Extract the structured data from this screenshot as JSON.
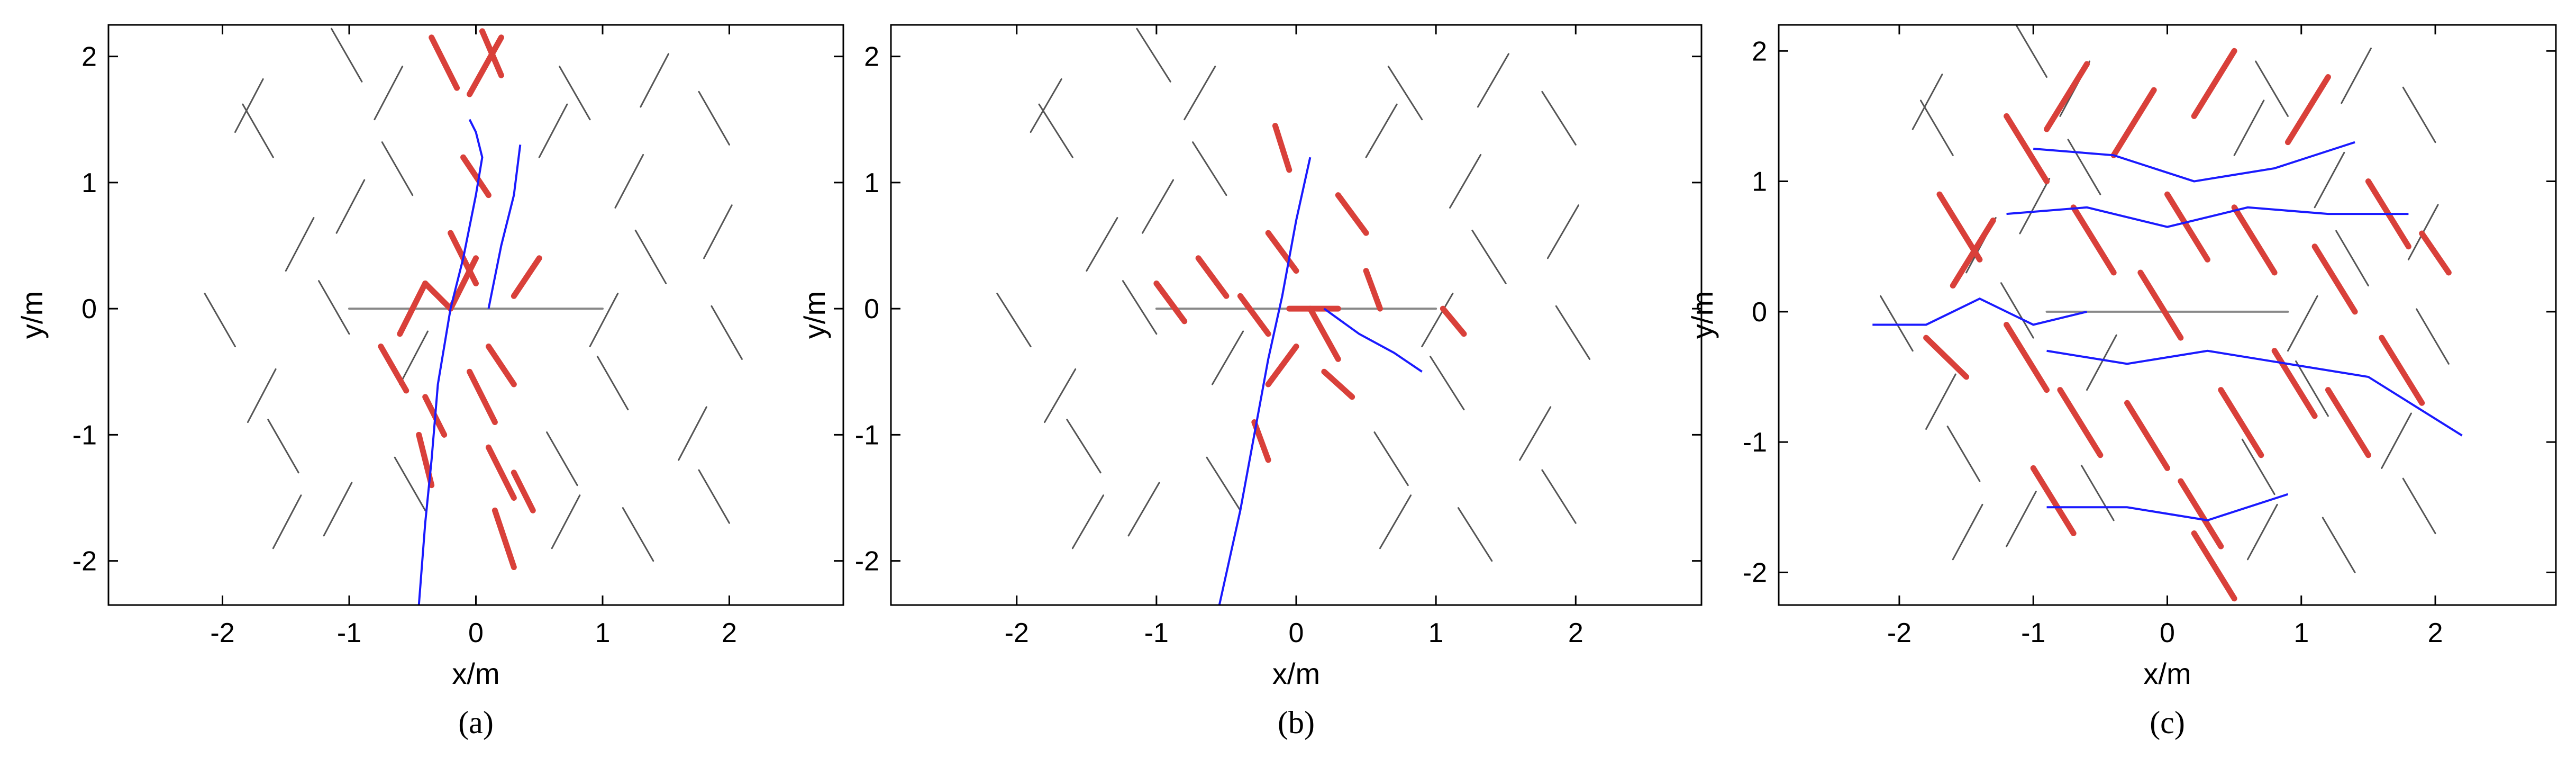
{
  "chart_data": [
    {
      "type": "segments",
      "xlabel": "x/m",
      "ylabel": "y/m",
      "caption": "(a)",
      "xlim": [
        -2.9,
        2.9
      ],
      "ylim": [
        -2.35,
        2.25
      ],
      "xticks": [
        -2,
        -1,
        0,
        1,
        2
      ],
      "yticks": [
        -2,
        -1,
        0,
        1,
        2
      ],
      "fractures": {
        "color": "#555555",
        "segments": [
          [
            -1.9,
            1.4,
            -1.68,
            1.82
          ],
          [
            -1.5,
            0.3,
            -1.28,
            0.72
          ],
          [
            -1.8,
            -0.9,
            -1.58,
            -0.48
          ],
          [
            -1.2,
            -1.8,
            -0.98,
            -1.38
          ],
          [
            -0.8,
            1.5,
            -0.58,
            1.92
          ],
          [
            -0.6,
            -0.6,
            -0.38,
            -0.18
          ],
          [
            0.5,
            1.2,
            0.72,
            1.62
          ],
          [
            0.9,
            -0.3,
            1.12,
            0.12
          ],
          [
            1.3,
            1.6,
            1.52,
            2.02
          ],
          [
            1.6,
            -1.2,
            1.82,
            -0.78
          ],
          [
            1.8,
            0.4,
            2.02,
            0.82
          ],
          [
            0.6,
            -1.9,
            0.82,
            -1.48
          ],
          [
            -1.1,
            0.6,
            -0.88,
            1.02
          ],
          [
            1.1,
            0.8,
            1.32,
            1.22
          ],
          [
            -1.6,
            -1.9,
            -1.38,
            -1.48
          ],
          [
            -1.6,
            1.2,
            -1.84,
            1.62
          ],
          [
            -1.0,
            -0.2,
            -1.24,
            0.22
          ],
          [
            -1.4,
            -1.3,
            -1.64,
            -0.88
          ],
          [
            -0.5,
            0.9,
            -0.74,
            1.32
          ],
          [
            -0.4,
            -1.6,
            -0.64,
            -1.18
          ],
          [
            0.9,
            1.5,
            0.66,
            1.92
          ],
          [
            1.2,
            -0.8,
            0.96,
            -0.38
          ],
          [
            1.5,
            0.2,
            1.26,
            0.62
          ],
          [
            2.0,
            1.3,
            1.76,
            1.72
          ],
          [
            2.0,
            -1.7,
            1.76,
            -1.28
          ],
          [
            0.8,
            -1.4,
            0.56,
            -0.98
          ],
          [
            -1.9,
            -0.3,
            -2.14,
            0.12
          ],
          [
            1.4,
            -2.0,
            1.16,
            -1.58
          ],
          [
            -0.9,
            1.8,
            -1.14,
            2.22
          ],
          [
            2.1,
            -0.4,
            1.86,
            0.02
          ]
        ]
      },
      "wellbore": {
        "color": "#888888",
        "segment": [
          -1,
          0,
          1,
          0
        ]
      },
      "activated": {
        "color": "#d9403a",
        "segments": [
          [
            -0.35,
            2.15,
            -0.15,
            1.75
          ],
          [
            0.05,
            2.2,
            0.2,
            1.85
          ],
          [
            0.2,
            2.15,
            -0.05,
            1.7
          ],
          [
            -0.1,
            1.2,
            0.1,
            0.9
          ],
          [
            -0.2,
            0.6,
            0.0,
            0.2
          ],
          [
            0.0,
            0.4,
            -0.2,
            0.0
          ],
          [
            -0.6,
            -0.2,
            -0.4,
            0.2
          ],
          [
            -0.4,
            0.2,
            -0.2,
            0.0
          ],
          [
            0.3,
            0.1,
            0.5,
            0.4
          ],
          [
            0.1,
            -0.3,
            0.3,
            -0.6
          ],
          [
            -0.05,
            -0.5,
            0.15,
            -0.9
          ],
          [
            -0.4,
            -0.7,
            -0.25,
            -1.0
          ],
          [
            -0.45,
            -1.0,
            -0.35,
            -1.4
          ],
          [
            0.1,
            -1.1,
            0.3,
            -1.5
          ],
          [
            0.3,
            -1.3,
            0.45,
            -1.6
          ],
          [
            0.15,
            -1.6,
            0.3,
            -2.05
          ],
          [
            -0.75,
            -0.3,
            -0.55,
            -0.65
          ]
        ]
      },
      "flow_paths": {
        "color": "#1a1aff",
        "paths": [
          {
            "x": [
              -0.45,
              -0.4,
              -0.35,
              -0.3,
              -0.2,
              -0.1,
              0.0,
              0.05,
              0.0,
              -0.05
            ],
            "y": [
              -2.35,
              -1.7,
              -1.2,
              -0.6,
              0.0,
              0.4,
              0.9,
              1.2,
              1.4,
              1.5
            ]
          },
          {
            "x": [
              0.1,
              0.2,
              0.3,
              0.35
            ],
            "y": [
              0.0,
              0.5,
              0.9,
              1.3
            ]
          }
        ]
      }
    },
    {
      "type": "segments",
      "xlabel": "x/m",
      "ylabel": "y/m",
      "caption": "(b)",
      "xlim": [
        -2.9,
        2.9
      ],
      "ylim": [
        -2.35,
        2.25
      ],
      "xticks": [
        -2,
        -1,
        0,
        1,
        2
      ],
      "yticks": [
        -2,
        -1,
        0,
        1,
        2
      ],
      "fractures": {
        "color": "#555555",
        "segments": [
          [
            -1.9,
            1.4,
            -1.68,
            1.82
          ],
          [
            -1.5,
            0.3,
            -1.28,
            0.72
          ],
          [
            -1.8,
            -0.9,
            -1.58,
            -0.48
          ],
          [
            -1.2,
            -1.8,
            -0.98,
            -1.38
          ],
          [
            -0.8,
            1.5,
            -0.58,
            1.92
          ],
          [
            -0.6,
            -0.6,
            -0.38,
            -0.18
          ],
          [
            0.5,
            1.2,
            0.72,
            1.62
          ],
          [
            0.9,
            -0.3,
            1.12,
            0.12
          ],
          [
            1.3,
            1.6,
            1.52,
            2.02
          ],
          [
            1.6,
            -1.2,
            1.82,
            -0.78
          ],
          [
            1.8,
            0.4,
            2.02,
            0.82
          ],
          [
            0.6,
            -1.9,
            0.82,
            -1.48
          ],
          [
            -1.1,
            0.6,
            -0.88,
            1.02
          ],
          [
            1.1,
            0.8,
            1.32,
            1.22
          ],
          [
            -1.6,
            -1.9,
            -1.38,
            -1.48
          ],
          [
            -1.6,
            1.2,
            -1.84,
            1.62
          ],
          [
            -1.0,
            -0.2,
            -1.24,
            0.22
          ],
          [
            -1.4,
            -1.3,
            -1.64,
            -0.88
          ],
          [
            -0.5,
            0.9,
            -0.74,
            1.32
          ],
          [
            -0.4,
            -1.6,
            -0.64,
            -1.18
          ],
          [
            0.9,
            1.5,
            0.66,
            1.92
          ],
          [
            1.2,
            -0.8,
            0.96,
            -0.38
          ],
          [
            1.5,
            0.2,
            1.26,
            0.62
          ],
          [
            2.0,
            1.3,
            1.76,
            1.72
          ],
          [
            2.0,
            -1.7,
            1.76,
            -1.28
          ],
          [
            0.8,
            -1.4,
            0.56,
            -0.98
          ],
          [
            -1.9,
            -0.3,
            -2.14,
            0.12
          ],
          [
            1.4,
            -2.0,
            1.16,
            -1.58
          ],
          [
            -0.9,
            1.8,
            -1.14,
            2.22
          ],
          [
            2.1,
            -0.4,
            1.86,
            0.02
          ]
        ]
      },
      "wellbore": {
        "color": "#888888",
        "segment": [
          -1,
          0,
          1,
          0
        ]
      },
      "activated": {
        "color": "#d9403a",
        "segments": [
          [
            -1.0,
            0.2,
            -0.8,
            -0.1
          ],
          [
            -0.7,
            0.4,
            -0.5,
            0.1
          ],
          [
            -0.4,
            0.1,
            -0.2,
            -0.2
          ],
          [
            -0.2,
            0.6,
            0.0,
            0.3
          ],
          [
            0.1,
            0.0,
            0.3,
            -0.4
          ],
          [
            0.0,
            -0.3,
            -0.2,
            -0.6
          ],
          [
            -0.3,
            -0.9,
            -0.2,
            -1.2
          ],
          [
            -0.15,
            1.45,
            -0.05,
            1.1
          ],
          [
            0.3,
            0.9,
            0.5,
            0.6
          ],
          [
            0.5,
            0.3,
            0.6,
            0.0
          ],
          [
            1.05,
            0.0,
            1.2,
            -0.2
          ],
          [
            0.2,
            -0.5,
            0.4,
            -0.7
          ],
          [
            -0.05,
            0.0,
            0.3,
            0.0
          ]
        ]
      },
      "flow_paths": {
        "color": "#1a1aff",
        "paths": [
          {
            "x": [
              -0.55,
              -0.4,
              -0.3,
              -0.2,
              -0.1,
              0.0,
              0.1
            ],
            "y": [
              -2.35,
              -1.6,
              -1.0,
              -0.4,
              0.1,
              0.7,
              1.2
            ]
          },
          {
            "x": [
              0.2,
              0.45,
              0.7,
              0.9
            ],
            "y": [
              0.0,
              -0.2,
              -0.35,
              -0.5
            ]
          }
        ]
      }
    },
    {
      "type": "segments",
      "xlabel": "x/m",
      "ylabel": "y/m",
      "caption": "(c)",
      "xlim": [
        -2.9,
        2.9
      ],
      "ylim": [
        -2.25,
        2.2
      ],
      "xticks": [
        -2,
        -1,
        0,
        1,
        2
      ],
      "yticks": [
        -2,
        -1,
        0,
        1,
        2
      ],
      "fractures": {
        "color": "#555555",
        "segments": [
          [
            -1.9,
            1.4,
            -1.68,
            1.82
          ],
          [
            -1.5,
            0.3,
            -1.28,
            0.72
          ],
          [
            -1.8,
            -0.9,
            -1.58,
            -0.48
          ],
          [
            -1.2,
            -1.8,
            -0.98,
            -1.38
          ],
          [
            -0.8,
            1.5,
            -0.58,
            1.92
          ],
          [
            -0.6,
            -0.6,
            -0.38,
            -0.18
          ],
          [
            0.5,
            1.2,
            0.72,
            1.62
          ],
          [
            0.9,
            -0.3,
            1.12,
            0.12
          ],
          [
            1.3,
            1.6,
            1.52,
            2.02
          ],
          [
            1.6,
            -1.2,
            1.82,
            -0.78
          ],
          [
            1.8,
            0.4,
            2.02,
            0.82
          ],
          [
            0.6,
            -1.9,
            0.82,
            -1.48
          ],
          [
            -1.1,
            0.6,
            -0.88,
            1.02
          ],
          [
            1.1,
            0.8,
            1.32,
            1.22
          ],
          [
            -1.6,
            -1.9,
            -1.38,
            -1.48
          ],
          [
            -1.6,
            1.2,
            -1.84,
            1.62
          ],
          [
            -1.0,
            -0.2,
            -1.24,
            0.22
          ],
          [
            -1.4,
            -1.3,
            -1.64,
            -0.88
          ],
          [
            -0.5,
            0.9,
            -0.74,
            1.32
          ],
          [
            -0.4,
            -1.6,
            -0.64,
            -1.18
          ],
          [
            0.9,
            1.5,
            0.66,
            1.92
          ],
          [
            1.2,
            -0.8,
            0.96,
            -0.38
          ],
          [
            1.5,
            0.2,
            1.26,
            0.62
          ],
          [
            2.0,
            1.3,
            1.76,
            1.72
          ],
          [
            2.0,
            -1.7,
            1.76,
            -1.28
          ],
          [
            0.8,
            -1.4,
            0.56,
            -0.98
          ],
          [
            -1.9,
            -0.3,
            -2.14,
            0.12
          ],
          [
            1.4,
            -2.0,
            1.16,
            -1.58
          ],
          [
            -0.9,
            1.8,
            -1.14,
            2.22
          ],
          [
            2.1,
            -0.4,
            1.86,
            0.02
          ]
        ]
      },
      "wellbore": {
        "color": "#888888",
        "segment": [
          -0.9,
          0,
          0.9,
          0
        ]
      },
      "activated": {
        "color": "#d9403a",
        "segments": [
          [
            -1.7,
            0.9,
            -1.4,
            0.4
          ],
          [
            -1.6,
            0.2,
            -1.3,
            0.7
          ],
          [
            -1.2,
            1.5,
            -0.9,
            1.0
          ],
          [
            -0.9,
            1.4,
            -0.6,
            1.9
          ],
          [
            -0.7,
            0.8,
            -0.4,
            0.3
          ],
          [
            -0.4,
            1.2,
            -0.1,
            1.7
          ],
          [
            0.0,
            0.9,
            0.3,
            0.4
          ],
          [
            0.2,
            1.5,
            0.5,
            2.0
          ],
          [
            0.5,
            0.8,
            0.8,
            0.3
          ],
          [
            0.9,
            1.3,
            1.2,
            1.8
          ],
          [
            1.1,
            0.5,
            1.4,
            0.0
          ],
          [
            1.5,
            1.0,
            1.8,
            0.5
          ],
          [
            1.6,
            -0.2,
            1.9,
            -0.7
          ],
          [
            1.2,
            -0.6,
            1.5,
            -1.1
          ],
          [
            0.8,
            -0.3,
            1.1,
            -0.8
          ],
          [
            0.4,
            -0.6,
            0.7,
            -1.1
          ],
          [
            0.1,
            -1.3,
            0.4,
            -1.8
          ],
          [
            -0.3,
            -0.7,
            0.0,
            -1.2
          ],
          [
            -0.8,
            -0.6,
            -0.5,
            -1.1
          ],
          [
            -1.2,
            -0.1,
            -0.9,
            -0.6
          ],
          [
            -1.0,
            -1.2,
            -0.7,
            -1.7
          ],
          [
            0.2,
            -1.7,
            0.5,
            -2.2
          ],
          [
            -0.2,
            0.3,
            0.1,
            -0.2
          ],
          [
            1.9,
            0.6,
            2.1,
            0.3
          ],
          [
            -1.8,
            -0.2,
            -1.5,
            -0.5
          ]
        ]
      },
      "flow_paths": {
        "color": "#1a1aff",
        "paths": [
          {
            "x": [
              -2.2,
              -1.8,
              -1.4,
              -1.0,
              -0.6
            ],
            "y": [
              -0.1,
              -0.1,
              0.1,
              -0.1,
              0.0
            ]
          },
          {
            "x": [
              -1.2,
              -0.6,
              0.0,
              0.6,
              1.2,
              1.8
            ],
            "y": [
              0.75,
              0.8,
              0.65,
              0.8,
              0.75,
              0.75
            ]
          },
          {
            "x": [
              -0.9,
              -0.3,
              0.3,
              0.9,
              1.5,
              2.2
            ],
            "y": [
              -0.3,
              -0.4,
              -0.3,
              -0.4,
              -0.5,
              -0.95
            ]
          },
          {
            "x": [
              -0.9,
              -0.3,
              0.3,
              0.9
            ],
            "y": [
              -1.5,
              -1.5,
              -1.6,
              -1.4
            ]
          },
          {
            "x": [
              -1.0,
              -0.4,
              0.2,
              0.8,
              1.4
            ],
            "y": [
              1.25,
              1.2,
              1.0,
              1.1,
              1.3
            ]
          }
        ]
      }
    }
  ]
}
